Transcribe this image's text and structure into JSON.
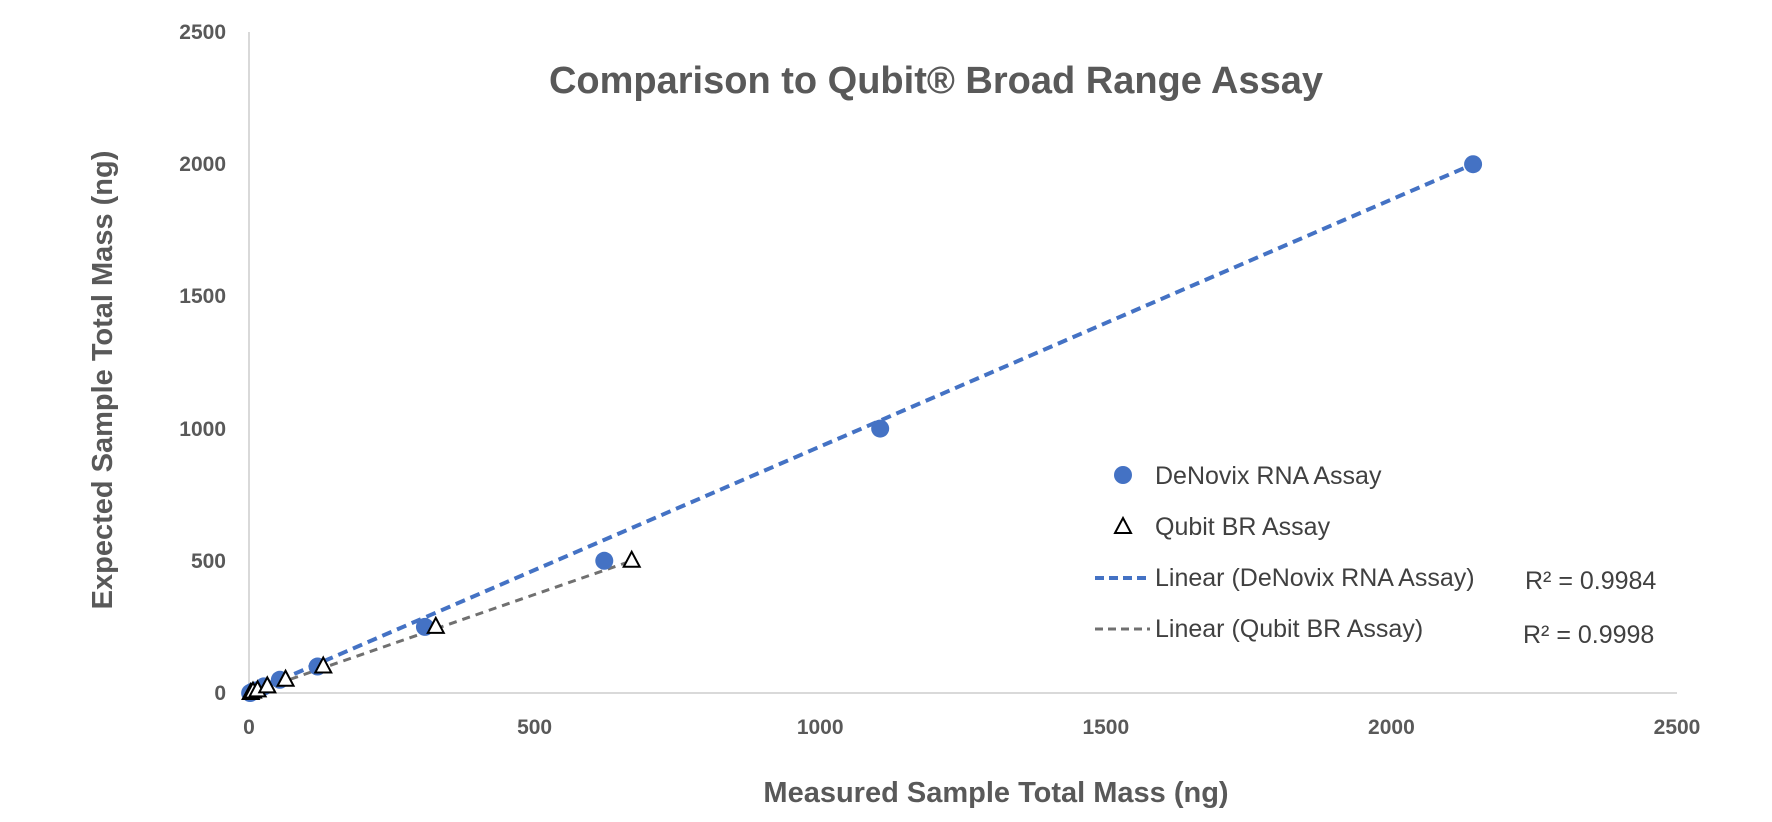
{
  "chart_data": {
    "type": "scatter",
    "title": "Comparison to Qubit® Broad Range Assay",
    "xlabel": "Measured Sample Total Mass (ng)",
    "ylabel": "Expected Sample Total Mass (ng)",
    "xlim": [
      0,
      2500
    ],
    "ylim": [
      0,
      2500
    ],
    "x_ticks": [
      "0",
      "500",
      "1000",
      "1500",
      "2000",
      "2500"
    ],
    "y_ticks": [
      "0",
      "500",
      "1000",
      "1500",
      "2000",
      "2500"
    ],
    "grid": false,
    "legend_position": "right",
    "series": [
      {
        "name": "DeNovix RNA Assay",
        "marker": "circle",
        "color": "#4472c4",
        "points": [
          {
            "x": 2,
            "y": 0
          },
          {
            "x": 6,
            "y": 5
          },
          {
            "x": 13,
            "y": 10
          },
          {
            "x": 26,
            "y": 25
          },
          {
            "x": 54,
            "y": 50
          },
          {
            "x": 120,
            "y": 100
          },
          {
            "x": 308,
            "y": 250
          },
          {
            "x": 622,
            "y": 500
          },
          {
            "x": 1105,
            "y": 1000
          },
          {
            "x": 2143,
            "y": 2000
          }
        ]
      },
      {
        "name": "Qubit BR Assay",
        "marker": "triangle",
        "color": "#000000",
        "points": [
          {
            "x": 3,
            "y": 0
          },
          {
            "x": 7,
            "y": 5
          },
          {
            "x": 15,
            "y": 10
          },
          {
            "x": 32,
            "y": 25
          },
          {
            "x": 64,
            "y": 50
          },
          {
            "x": 130,
            "y": 100
          },
          {
            "x": 327,
            "y": 250
          },
          {
            "x": 670,
            "y": 500
          }
        ]
      }
    ],
    "trendlines": [
      {
        "name": "Linear (DeNovix RNA Assay)",
        "color": "#4472c4",
        "from": {
          "x": 2,
          "y": 0
        },
        "to": {
          "x": 2143,
          "y": 2000
        },
        "r2_label": "R² = 0.9984"
      },
      {
        "name": "Linear (Qubit BR Assay)",
        "color": "#707070",
        "from": {
          "x": 3,
          "y": 0
        },
        "to": {
          "x": 670,
          "y": 500
        },
        "r2_label": "R² = 0.9998"
      }
    ]
  }
}
